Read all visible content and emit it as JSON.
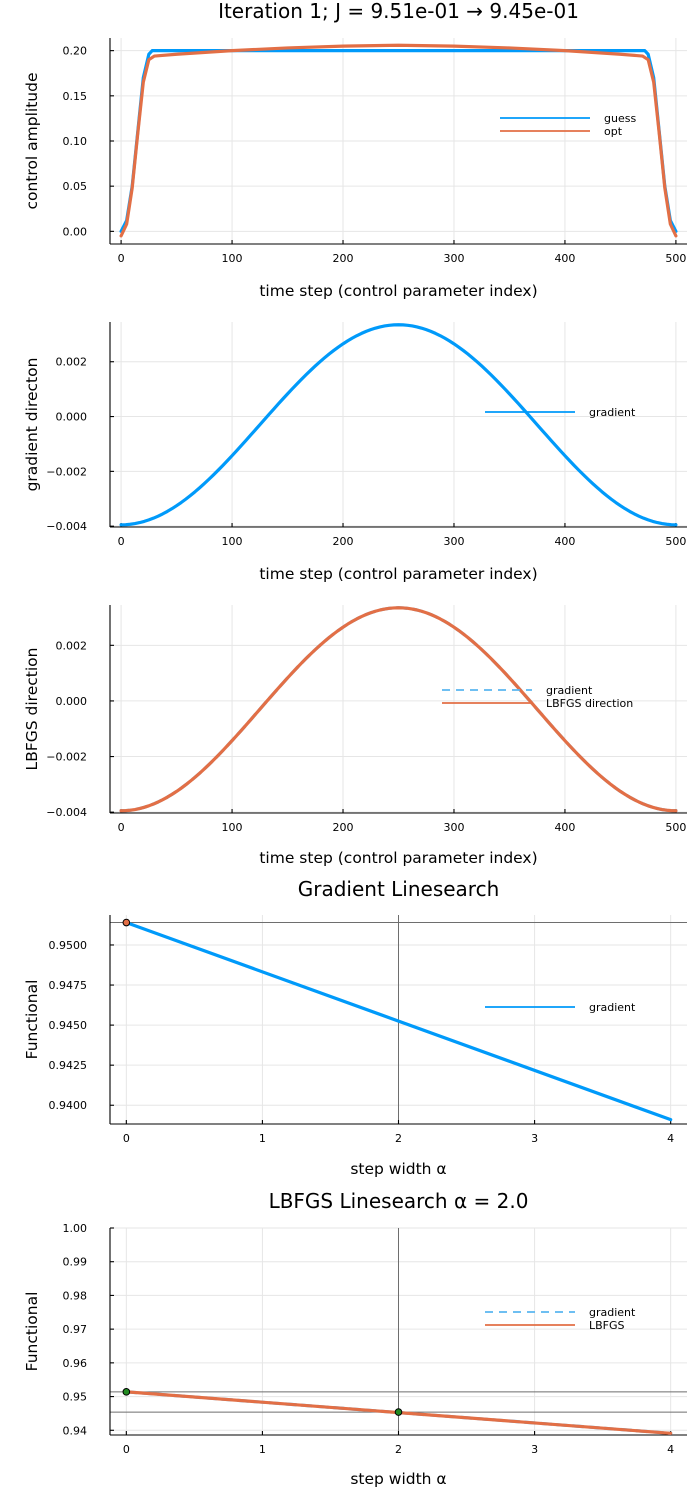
{
  "figure_title": "Iteration 1; J = 9.51e-01 → 9.45e-01",
  "colors": {
    "blue": "#009AFA",
    "orange": "#E26F46",
    "light_blue": "#5AB6F0",
    "ref": "#6E6E6E",
    "point": "#228B22"
  },
  "chart_data": [
    {
      "type": "line",
      "title": "Iteration 1; J = 9.51e-01 → 9.45e-01",
      "xlabel": "time step (control parameter index)",
      "ylabel": "control amplitude",
      "xlim": [
        -10,
        510
      ],
      "ylim": [
        -0.014,
        0.214
      ],
      "xticks": [
        0,
        100,
        200,
        300,
        400,
        500
      ],
      "xtick_labels": [
        "0",
        "100",
        "200",
        "300",
        "400",
        "500"
      ],
      "yticks": [
        0.0,
        0.05,
        0.1,
        0.15,
        0.2
      ],
      "ytick_labels": [
        "0.00",
        "0.05",
        "0.10",
        "0.15",
        "0.20"
      ],
      "legend_position": "right",
      "series": [
        {
          "name": "guess",
          "color": "#009AFA",
          "dash": "solid",
          "x": [
            0,
            5,
            10,
            15,
            20,
            25,
            28,
            30,
            470,
            472,
            475,
            480,
            485,
            490,
            495,
            500
          ],
          "values": [
            0.0,
            0.012,
            0.05,
            0.11,
            0.17,
            0.196,
            0.2,
            0.2,
            0.2,
            0.2,
            0.196,
            0.17,
            0.11,
            0.05,
            0.012,
            0.0
          ]
        },
        {
          "name": "opt",
          "color": "#E26F46",
          "dash": "solid",
          "x": [
            0,
            5,
            10,
            15,
            20,
            25,
            30,
            50,
            100,
            150,
            200,
            250,
            300,
            350,
            400,
            450,
            470,
            475,
            480,
            485,
            490,
            495,
            500
          ],
          "values": [
            -0.005,
            0.008,
            0.048,
            0.108,
            0.165,
            0.19,
            0.194,
            0.196,
            0.2,
            0.203,
            0.205,
            0.206,
            0.205,
            0.203,
            0.2,
            0.196,
            0.194,
            0.19,
            0.165,
            0.108,
            0.048,
            0.008,
            -0.005
          ]
        }
      ]
    },
    {
      "type": "line",
      "title": "",
      "xlabel": "time step (control parameter index)",
      "ylabel": "gradient directon",
      "xlim": [
        -10,
        510
      ],
      "ylim": [
        -0.00403,
        0.00345
      ],
      "xticks": [
        0,
        100,
        200,
        300,
        400,
        500
      ],
      "xtick_labels": [
        "0",
        "100",
        "200",
        "300",
        "400",
        "500"
      ],
      "yticks": [
        -0.004,
        -0.002,
        0.0,
        0.002
      ],
      "ytick_labels": [
        "−0.004",
        "−0.002",
        "0.000",
        "0.002"
      ],
      "legend_position": "right",
      "series": [
        {
          "name": "gradient",
          "color": "#009AFA",
          "dash": "solid",
          "curve": {
            "kind": "cosine",
            "x0": 0,
            "x1": 500,
            "center": 250,
            "mid": -0.0003,
            "amp": 0.00365
          }
        }
      ]
    },
    {
      "type": "line",
      "title": "",
      "xlabel": "time step (control parameter index)",
      "ylabel": "LBFGS direction",
      "xlim": [
        -10,
        510
      ],
      "ylim": [
        -0.00403,
        0.00345
      ],
      "xticks": [
        0,
        100,
        200,
        300,
        400,
        500
      ],
      "xtick_labels": [
        "0",
        "100",
        "200",
        "300",
        "400",
        "500"
      ],
      "yticks": [
        -0.004,
        -0.002,
        0.0,
        0.002
      ],
      "ytick_labels": [
        "−0.004",
        "−0.002",
        "0.000",
        "0.002"
      ],
      "legend_position": "right",
      "series": [
        {
          "name": "gradient",
          "color": "#5AB6F0",
          "dash": "dashed",
          "curve": {
            "kind": "cosine",
            "x0": 0,
            "x1": 500,
            "center": 250,
            "mid": -0.0003,
            "amp": 0.00365
          }
        },
        {
          "name": "LBFGS direction",
          "color": "#E26F46",
          "dash": "solid",
          "curve": {
            "kind": "cosine",
            "x0": 0,
            "x1": 500,
            "center": 250,
            "mid": -0.0003,
            "amp": 0.00365
          }
        }
      ]
    },
    {
      "type": "line",
      "title": "Gradient Linesearch",
      "xlabel": "step width α",
      "ylabel": "Functional",
      "xlim": [
        -0.12,
        4.12
      ],
      "ylim": [
        0.93883,
        0.95187
      ],
      "xticks": [
        0,
        1,
        2,
        3,
        4
      ],
      "xtick_labels": [
        "0",
        "1",
        "2",
        "3",
        "4"
      ],
      "yticks": [
        0.94,
        0.9425,
        0.945,
        0.9475,
        0.95
      ],
      "ytick_labels": [
        "0.9400",
        "0.9425",
        "0.9450",
        "0.9475",
        "0.9500"
      ],
      "legend_position": "right",
      "series": [
        {
          "name": "gradient",
          "color": "#009AFA",
          "dash": "solid",
          "x": [
            0,
            4
          ],
          "values": [
            0.9514,
            0.9391
          ]
        }
      ],
      "hlines": [
        0.9514
      ],
      "vlines": [
        2
      ],
      "points": [
        {
          "x": 0,
          "y": 0.9514,
          "color": "#E26F46"
        }
      ]
    },
    {
      "type": "line",
      "title": "LBFGS Linesearch α = 2.0",
      "xlabel": "step width α",
      "ylabel": "Functional",
      "xlim": [
        -0.12,
        4.12
      ],
      "ylim": [
        0.9386,
        1.0
      ],
      "xticks": [
        0,
        1,
        2,
        3,
        4
      ],
      "xtick_labels": [
        "0",
        "1",
        "2",
        "3",
        "4"
      ],
      "yticks": [
        0.94,
        0.95,
        0.96,
        0.97,
        0.98,
        0.99,
        1.0
      ],
      "ytick_labels": [
        "0.94",
        "0.95",
        "0.96",
        "0.97",
        "0.98",
        "0.99",
        "1.00"
      ],
      "legend_position": "right",
      "series": [
        {
          "name": "gradient",
          "color": "#5AB6F0",
          "dash": "dashed",
          "x": [
            0,
            4
          ],
          "values": [
            0.9514,
            0.9391
          ]
        },
        {
          "name": "LBFGS",
          "color": "#E26F46",
          "dash": "solid",
          "x": [
            0,
            4
          ],
          "values": [
            0.9514,
            0.9391
          ]
        }
      ],
      "hlines": [
        0.9514,
        0.9454
      ],
      "vlines": [
        2
      ],
      "points": [
        {
          "x": 0,
          "y": 0.9514,
          "color": "#228B22"
        },
        {
          "x": 2,
          "y": 0.9454,
          "color": "#228B22"
        }
      ]
    }
  ]
}
